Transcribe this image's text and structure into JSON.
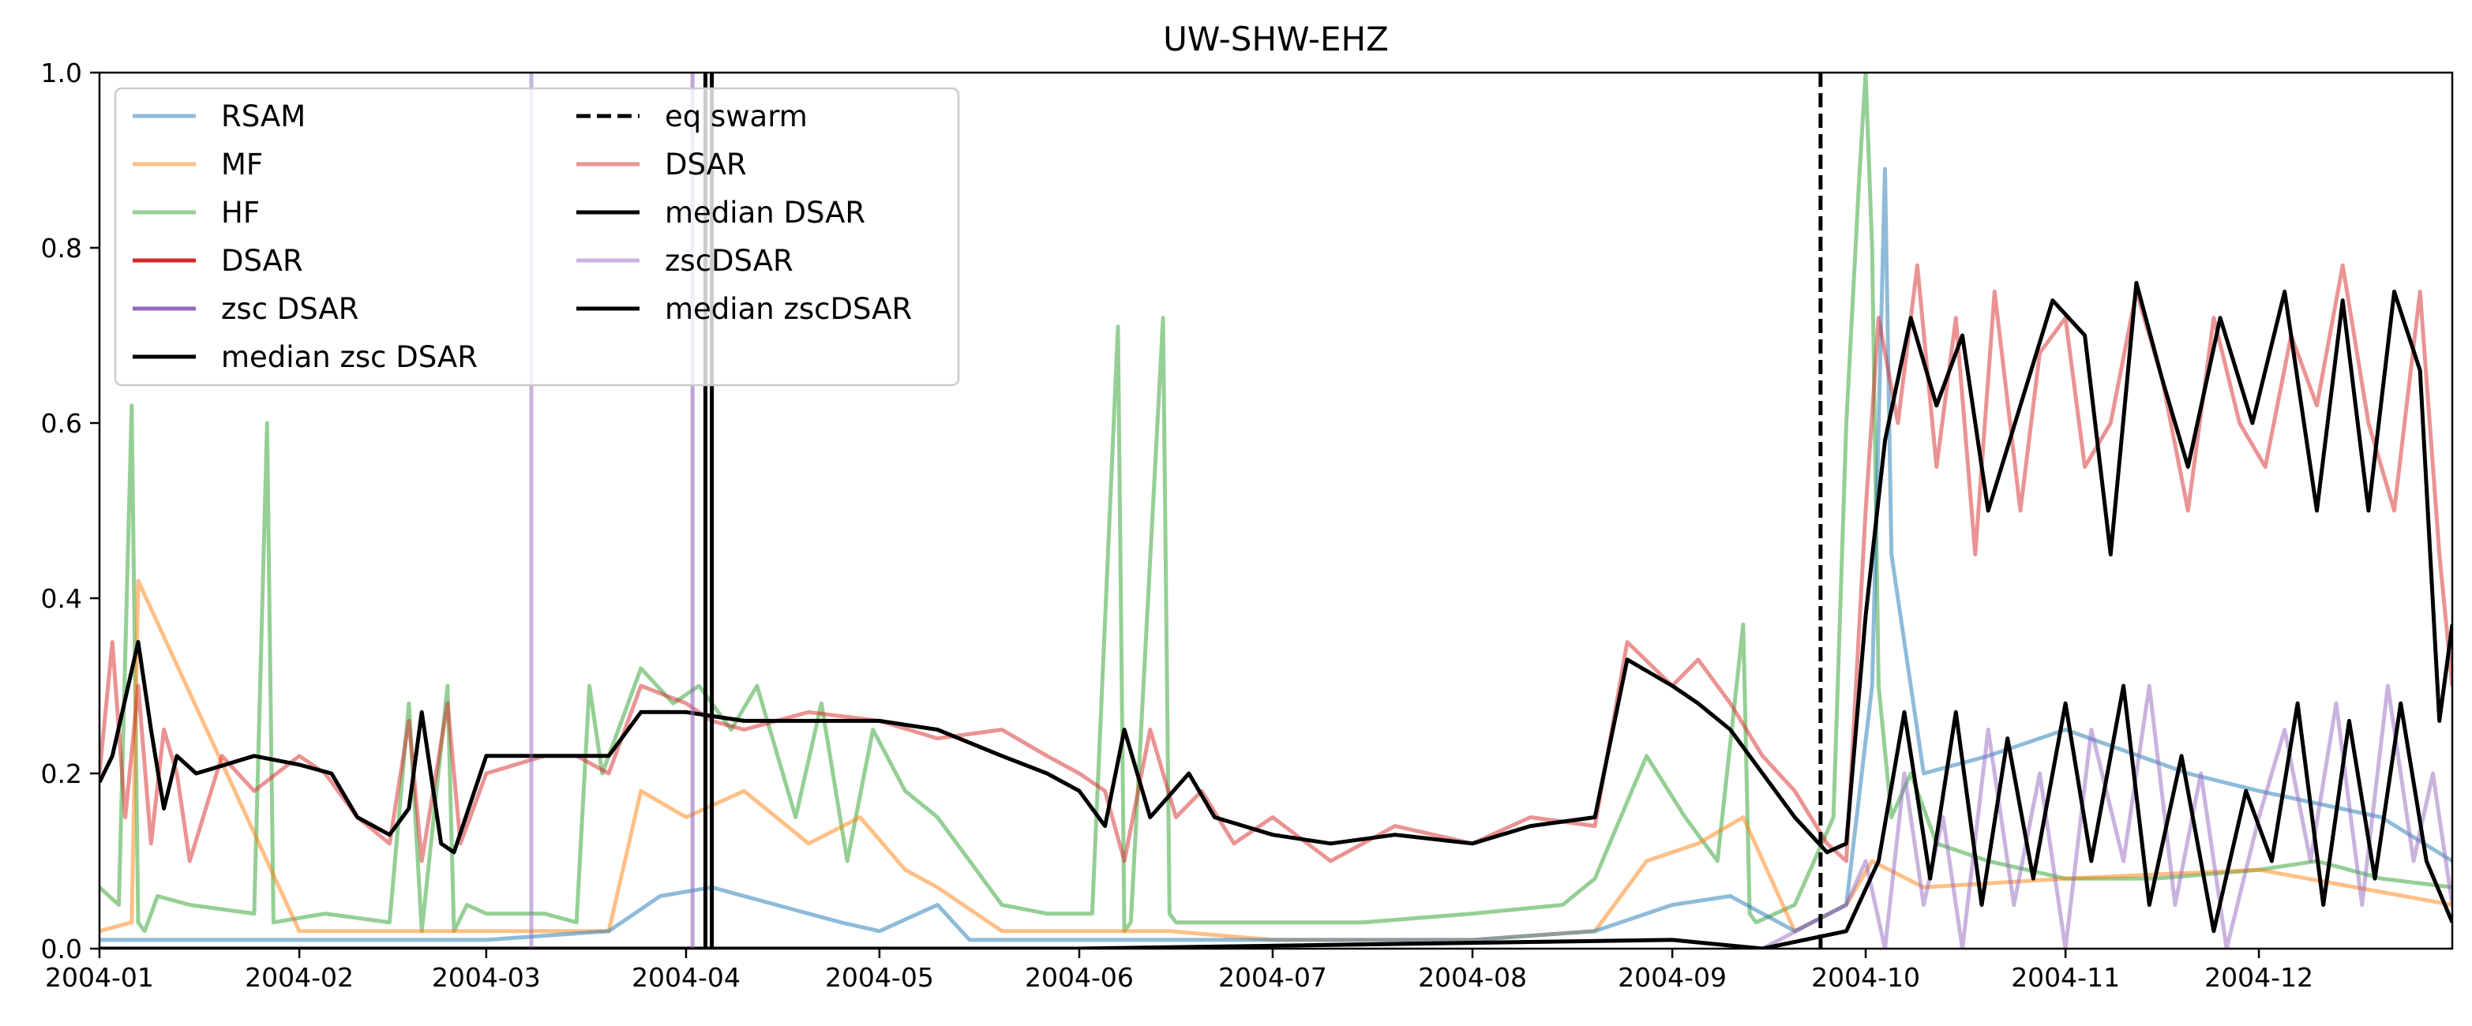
{
  "chart_data": {
    "type": "line",
    "title": "UW-SHW-EHZ",
    "xlabel": "",
    "ylabel": "",
    "xlim": [
      "2004-01-01",
      "2004-12-31"
    ],
    "ylim": [
      0,
      1
    ],
    "x_ticks": [
      "2004-01",
      "2004-02",
      "2004-03",
      "2004-04",
      "2004-05",
      "2004-06",
      "2004-07",
      "2004-08",
      "2004-09",
      "2004-10",
      "2004-11",
      "2004-12"
    ],
    "y_ticks": [
      "0.0",
      "0.2",
      "0.4",
      "0.6",
      "0.8",
      "1.0"
    ],
    "grid": false,
    "legend_position": "upper-left",
    "legend": [
      {
        "label": "RSAM",
        "color": "#1f77b4",
        "style": "solid",
        "alpha": 0.5
      },
      {
        "label": "MF",
        "color": "#ff7f0e",
        "style": "solid",
        "alpha": 0.5
      },
      {
        "label": "HF",
        "color": "#2ca02c",
        "style": "solid",
        "alpha": 0.5
      },
      {
        "label": "DSAR",
        "color": "#d62728",
        "style": "solid",
        "alpha": 1.0
      },
      {
        "label": "zsc DSAR",
        "color": "#9467bd",
        "style": "solid",
        "alpha": 1.0
      },
      {
        "label": "median zsc DSAR",
        "color": "#000000",
        "style": "solid",
        "alpha": 1.0
      },
      {
        "label": "eq swarm",
        "color": "#000000",
        "style": "dashed",
        "alpha": 1.0
      },
      {
        "label": "DSAR",
        "color": "#d62728",
        "style": "solid",
        "alpha": 0.5
      },
      {
        "label": "median DSAR",
        "color": "#000000",
        "style": "solid",
        "alpha": 1.0
      },
      {
        "label": "zscDSAR",
        "color": "#9467bd",
        "style": "solid",
        "alpha": 0.5
      },
      {
        "label": "median zscDSAR",
        "color": "#000000",
        "style": "solid",
        "alpha": 1.0
      }
    ],
    "vlines": [
      {
        "x": "2004-09-24",
        "color": "#000000",
        "style": "dashed",
        "name": "eq swarm"
      },
      {
        "x": "2004-03-08",
        "color": "#9467bd",
        "style": "solid",
        "alpha": 0.5
      },
      {
        "x": "2004-04-02",
        "color": "#9467bd",
        "style": "solid",
        "alpha": 0.6
      },
      {
        "x": "2004-04-04",
        "color": "#000000",
        "style": "solid",
        "alpha": 1.0
      },
      {
        "x": "2004-04-05",
        "color": "#000000",
        "style": "solid",
        "alpha": 1.0
      }
    ],
    "series": [
      {
        "name": "HF",
        "color": "#2ca02c",
        "alpha": 0.5,
        "x": [
          "2004-01-01",
          "2004-01-04",
          "2004-01-06",
          "2004-01-07",
          "2004-01-08",
          "2004-01-10",
          "2004-01-15",
          "2004-01-25",
          "2004-01-27",
          "2004-01-28",
          "2004-02-05",
          "2004-02-15",
          "2004-02-18",
          "2004-02-20",
          "2004-02-24",
          "2004-02-25",
          "2004-02-27",
          "2004-03-01",
          "2004-03-10",
          "2004-03-15",
          "2004-03-17",
          "2004-03-19",
          "2004-03-25",
          "2004-03-30",
          "2004-04-03",
          "2004-04-08",
          "2004-04-12",
          "2004-04-18",
          "2004-04-22",
          "2004-04-26",
          "2004-04-30",
          "2004-05-05",
          "2004-05-10",
          "2004-05-20",
          "2004-05-27",
          "2004-06-03",
          "2004-06-07",
          "2004-06-08",
          "2004-06-09",
          "2004-06-14",
          "2004-06-15",
          "2004-06-16",
          "2004-06-20",
          "2004-07-01",
          "2004-07-15",
          "2004-08-01",
          "2004-08-15",
          "2004-08-20",
          "2004-08-28",
          "2004-09-03",
          "2004-09-08",
          "2004-09-12",
          "2004-09-13",
          "2004-09-14",
          "2004-09-20",
          "2004-09-26",
          "2004-09-28",
          "2004-09-30",
          "2004-10-01",
          "2004-10-02",
          "2004-10-03",
          "2004-10-05",
          "2004-10-08",
          "2004-10-12",
          "2004-10-20",
          "2004-11-01",
          "2004-11-15",
          "2004-12-01",
          "2004-12-10",
          "2004-12-20",
          "2004-12-31"
        ],
        "values": [
          0.07,
          0.05,
          0.62,
          0.03,
          0.02,
          0.06,
          0.05,
          0.04,
          0.6,
          0.03,
          0.04,
          0.03,
          0.28,
          0.02,
          0.3,
          0.02,
          0.05,
          0.04,
          0.04,
          0.03,
          0.3,
          0.2,
          0.32,
          0.28,
          0.3,
          0.25,
          0.3,
          0.15,
          0.28,
          0.1,
          0.25,
          0.18,
          0.15,
          0.05,
          0.04,
          0.04,
          0.71,
          0.02,
          0.03,
          0.72,
          0.04,
          0.03,
          0.03,
          0.03,
          0.03,
          0.04,
          0.05,
          0.08,
          0.22,
          0.15,
          0.1,
          0.37,
          0.04,
          0.03,
          0.05,
          0.15,
          0.6,
          0.88,
          1.0,
          0.8,
          0.3,
          0.15,
          0.2,
          0.12,
          0.1,
          0.08,
          0.08,
          0.09,
          0.1,
          0.08,
          0.07
        ]
      },
      {
        "name": "MF",
        "color": "#ff7f0e",
        "alpha": 0.5,
        "x": [
          "2004-01-01",
          "2004-01-06",
          "2004-01-07",
          "2004-02-01",
          "2004-03-01",
          "2004-03-20",
          "2004-03-25",
          "2004-04-01",
          "2004-04-10",
          "2004-04-20",
          "2004-04-28",
          "2004-05-05",
          "2004-05-10",
          "2004-05-20",
          "2004-06-01",
          "2004-06-15",
          "2004-07-01",
          "2004-08-01",
          "2004-08-20",
          "2004-08-28",
          "2004-09-05",
          "2004-09-12",
          "2004-09-20",
          "2004-09-28",
          "2004-10-02",
          "2004-10-10",
          "2004-11-01",
          "2004-12-01",
          "2004-12-31"
        ],
        "values": [
          0.02,
          0.03,
          0.42,
          0.02,
          0.02,
          0.02,
          0.18,
          0.15,
          0.18,
          0.12,
          0.15,
          0.09,
          0.07,
          0.02,
          0.02,
          0.02,
          0.01,
          0.01,
          0.02,
          0.1,
          0.12,
          0.15,
          0.02,
          0.05,
          0.1,
          0.07,
          0.08,
          0.09,
          0.05
        ]
      },
      {
        "name": "RSAM",
        "color": "#1f77b4",
        "alpha": 0.5,
        "x": [
          "2004-01-01",
          "2004-01-15",
          "2004-02-01",
          "2004-03-01",
          "2004-03-20",
          "2004-03-28",
          "2004-04-05",
          "2004-04-15",
          "2004-04-25",
          "2004-05-01",
          "2004-05-10",
          "2004-05-15",
          "2004-06-01",
          "2004-07-01",
          "2004-08-01",
          "2004-08-20",
          "2004-09-01",
          "2004-09-10",
          "2004-09-20",
          "2004-09-28",
          "2004-10-02",
          "2004-10-04",
          "2004-10-05",
          "2004-10-10",
          "2004-10-20",
          "2004-11-01",
          "2004-11-20",
          "2004-12-01",
          "2004-12-20",
          "2004-12-31"
        ],
        "values": [
          0.01,
          0.01,
          0.01,
          0.01,
          0.02,
          0.06,
          0.07,
          0.05,
          0.03,
          0.02,
          0.05,
          0.01,
          0.01,
          0.01,
          0.01,
          0.02,
          0.05,
          0.06,
          0.02,
          0.05,
          0.3,
          0.89,
          0.45,
          0.2,
          0.22,
          0.25,
          0.2,
          0.18,
          0.15,
          0.1
        ]
      },
      {
        "name": "DSAR",
        "color": "#d62728",
        "alpha": 0.5,
        "x": [
          "2004-01-01",
          "2004-01-03",
          "2004-01-05",
          "2004-01-07",
          "2004-01-09",
          "2004-01-11",
          "2004-01-13",
          "2004-01-15",
          "2004-01-20",
          "2004-01-25",
          "2004-02-01",
          "2004-02-05",
          "2004-02-10",
          "2004-02-15",
          "2004-02-18",
          "2004-02-20",
          "2004-02-24",
          "2004-02-26",
          "2004-03-01",
          "2004-03-10",
          "2004-03-15",
          "2004-03-20",
          "2004-03-25",
          "2004-04-01",
          "2004-04-05",
          "2004-04-10",
          "2004-04-20",
          "2004-05-01",
          "2004-05-10",
          "2004-05-20",
          "2004-05-27",
          "2004-06-01",
          "2004-06-05",
          "2004-06-08",
          "2004-06-12",
          "2004-06-16",
          "2004-06-20",
          "2004-06-25",
          "2004-07-01",
          "2004-07-10",
          "2004-07-20",
          "2004-08-01",
          "2004-08-10",
          "2004-08-20",
          "2004-08-25",
          "2004-09-01",
          "2004-09-05",
          "2004-09-10",
          "2004-09-15",
          "2004-09-20",
          "2004-09-25",
          "2004-09-28",
          "2004-10-01",
          "2004-10-03",
          "2004-10-06",
          "2004-10-09",
          "2004-10-12",
          "2004-10-15",
          "2004-10-18",
          "2004-10-21",
          "2004-10-25",
          "2004-10-28",
          "2004-11-01",
          "2004-11-04",
          "2004-11-08",
          "2004-11-12",
          "2004-11-16",
          "2004-11-20",
          "2004-11-24",
          "2004-11-28",
          "2004-12-02",
          "2004-12-06",
          "2004-12-10",
          "2004-12-14",
          "2004-12-18",
          "2004-12-22",
          "2004-12-26",
          "2004-12-29",
          "2004-12-31"
        ],
        "values": [
          0.2,
          0.35,
          0.15,
          0.3,
          0.12,
          0.25,
          0.2,
          0.1,
          0.22,
          0.18,
          0.22,
          0.2,
          0.15,
          0.12,
          0.26,
          0.1,
          0.28,
          0.12,
          0.2,
          0.22,
          0.22,
          0.2,
          0.3,
          0.28,
          0.26,
          0.25,
          0.27,
          0.26,
          0.24,
          0.25,
          0.22,
          0.2,
          0.18,
          0.1,
          0.25,
          0.15,
          0.18,
          0.12,
          0.15,
          0.1,
          0.14,
          0.12,
          0.15,
          0.14,
          0.35,
          0.3,
          0.33,
          0.28,
          0.22,
          0.18,
          0.12,
          0.1,
          0.5,
          0.72,
          0.6,
          0.78,
          0.55,
          0.72,
          0.45,
          0.75,
          0.5,
          0.68,
          0.72,
          0.55,
          0.6,
          0.75,
          0.65,
          0.5,
          0.72,
          0.6,
          0.55,
          0.7,
          0.62,
          0.78,
          0.6,
          0.5,
          0.75,
          0.45,
          0.3
        ]
      },
      {
        "name": "zscDSAR",
        "color": "#9467bd",
        "alpha": 0.5,
        "x": [
          "2004-01-01",
          "2004-03-01",
          "2004-06-01",
          "2004-09-01",
          "2004-09-15",
          "2004-09-28",
          "2004-10-01",
          "2004-10-04",
          "2004-10-07",
          "2004-10-10",
          "2004-10-13",
          "2004-10-16",
          "2004-10-20",
          "2004-10-24",
          "2004-10-28",
          "2004-11-01",
          "2004-11-05",
          "2004-11-10",
          "2004-11-14",
          "2004-11-18",
          "2004-11-22",
          "2004-11-26",
          "2004-12-01",
          "2004-12-05",
          "2004-12-09",
          "2004-12-13",
          "2004-12-17",
          "2004-12-21",
          "2004-12-25",
          "2004-12-28",
          "2004-12-31"
        ],
        "values": [
          0.0,
          0.0,
          0.0,
          0.01,
          0.0,
          0.05,
          0.1,
          0.0,
          0.2,
          0.05,
          0.15,
          0.0,
          0.25,
          0.05,
          0.2,
          0.0,
          0.25,
          0.1,
          0.3,
          0.05,
          0.2,
          0.0,
          0.15,
          0.25,
          0.1,
          0.28,
          0.05,
          0.3,
          0.1,
          0.2,
          0.05
        ]
      },
      {
        "name": "median DSAR",
        "color": "#000000",
        "alpha": 1.0,
        "x": [
          "2004-01-01",
          "2004-01-03",
          "2004-01-07",
          "2004-01-09",
          "2004-01-11",
          "2004-01-13",
          "2004-01-16",
          "2004-01-25",
          "2004-02-01",
          "2004-02-06",
          "2004-02-10",
          "2004-02-15",
          "2004-02-18",
          "2004-02-20",
          "2004-02-23",
          "2004-02-25",
          "2004-03-01",
          "2004-03-10",
          "2004-03-20",
          "2004-03-25",
          "2004-04-01",
          "2004-04-10",
          "2004-04-20",
          "2004-05-01",
          "2004-05-10",
          "2004-05-20",
          "2004-05-27",
          "2004-06-01",
          "2004-06-05",
          "2004-06-08",
          "2004-06-12",
          "2004-06-18",
          "2004-06-22",
          "2004-07-01",
          "2004-07-10",
          "2004-07-20",
          "2004-08-01",
          "2004-08-10",
          "2004-08-20",
          "2004-08-25",
          "2004-09-01",
          "2004-09-05",
          "2004-09-10",
          "2004-09-15",
          "2004-09-20",
          "2004-09-25",
          "2004-09-28",
          "2004-10-01",
          "2004-10-04",
          "2004-10-08",
          "2004-10-12",
          "2004-10-16",
          "2004-10-20",
          "2004-10-25",
          "2004-10-30",
          "2004-11-04",
          "2004-11-08",
          "2004-11-12",
          "2004-11-16",
          "2004-11-20",
          "2004-11-25",
          "2004-11-30",
          "2004-12-05",
          "2004-12-10",
          "2004-12-14",
          "2004-12-18",
          "2004-12-22",
          "2004-12-26",
          "2004-12-29",
          "2004-12-31"
        ],
        "values": [
          0.19,
          0.22,
          0.35,
          0.25,
          0.16,
          0.22,
          0.2,
          0.22,
          0.21,
          0.2,
          0.15,
          0.13,
          0.16,
          0.27,
          0.12,
          0.11,
          0.22,
          0.22,
          0.22,
          0.27,
          0.27,
          0.26,
          0.26,
          0.26,
          0.25,
          0.22,
          0.2,
          0.18,
          0.14,
          0.25,
          0.15,
          0.2,
          0.15,
          0.13,
          0.12,
          0.13,
          0.12,
          0.14,
          0.15,
          0.33,
          0.3,
          0.28,
          0.25,
          0.2,
          0.15,
          0.11,
          0.12,
          0.38,
          0.58,
          0.72,
          0.62,
          0.7,
          0.5,
          0.62,
          0.74,
          0.7,
          0.45,
          0.76,
          0.65,
          0.55,
          0.72,
          0.6,
          0.75,
          0.5,
          0.74,
          0.5,
          0.75,
          0.66,
          0.26,
          0.37
        ]
      },
      {
        "name": "median zscDSAR",
        "color": "#000000",
        "alpha": 1.0,
        "x": [
          "2004-01-01",
          "2004-03-01",
          "2004-06-01",
          "2004-09-01",
          "2004-09-15",
          "2004-09-28",
          "2004-10-03",
          "2004-10-07",
          "2004-10-11",
          "2004-10-15",
          "2004-10-19",
          "2004-10-23",
          "2004-10-27",
          "2004-11-01",
          "2004-11-05",
          "2004-11-10",
          "2004-11-14",
          "2004-11-19",
          "2004-11-24",
          "2004-11-29",
          "2004-12-03",
          "2004-12-07",
          "2004-12-11",
          "2004-12-15",
          "2004-12-19",
          "2004-12-23",
          "2004-12-27",
          "2004-12-31"
        ],
        "values": [
          0.0,
          0.0,
          0.0,
          0.01,
          0.0,
          0.02,
          0.1,
          0.27,
          0.08,
          0.27,
          0.05,
          0.24,
          0.08,
          0.28,
          0.1,
          0.3,
          0.05,
          0.22,
          0.02,
          0.18,
          0.1,
          0.28,
          0.05,
          0.26,
          0.08,
          0.28,
          0.1,
          0.03
        ]
      }
    ]
  }
}
